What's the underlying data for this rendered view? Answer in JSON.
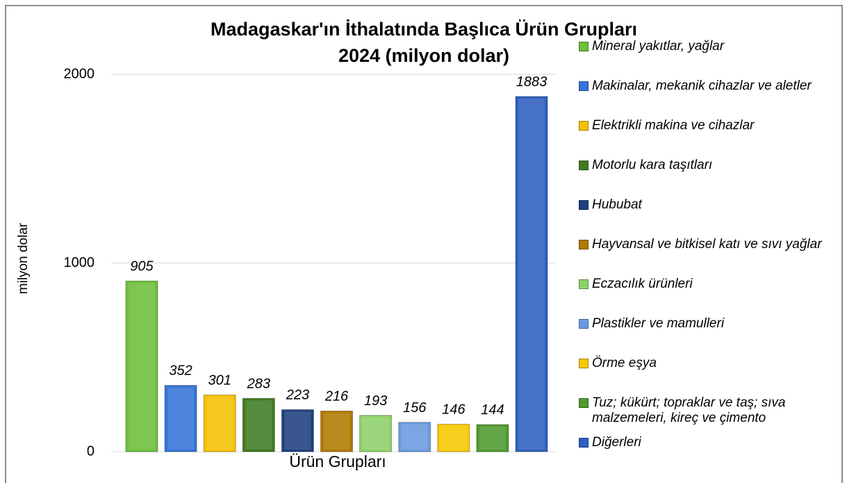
{
  "chart_data": {
    "type": "bar",
    "title": [
      "Madagaskar'ın İthalatında Başlıca Ürün Grupları",
      "2024 (milyon dolar)"
    ],
    "x_label": "Ürün Grupları",
    "y_label": "milyon dolar",
    "categories": [
      "Mineral yakıtlar, yağlar",
      "Makinalar, mekanik cihazlar ve aletler",
      "Elektrikli makina ve cihazlar",
      "Motorlu kara taşıtları",
      "Hububat",
      "Hayvansal ve bitkisel katı ve sıvı yağlar",
      "Eczacılık ürünleri",
      "Plastikler ve mamulleri",
      "Örme eşya",
      "Tuz; kükürt; topraklar ve taş; sıva malzemeleri, kireç ve çimento",
      "Diğerleri"
    ],
    "values": [
      905,
      352,
      301,
      283,
      223,
      216,
      193,
      156,
      146,
      144,
      1883
    ],
    "colors": [
      "#6cbf3a",
      "#3574d8",
      "#f5c000",
      "#3f7a22",
      "#1f3f80",
      "#b07a00",
      "#8fd16a",
      "#6a9ae0",
      "#f7c800",
      "#4e9a2e",
      "#2e5fc0"
    ],
    "ylim": [
      0,
      2000
    ],
    "yticks": [
      0,
      1000,
      2000
    ],
    "grid": true,
    "legend": "right"
  }
}
